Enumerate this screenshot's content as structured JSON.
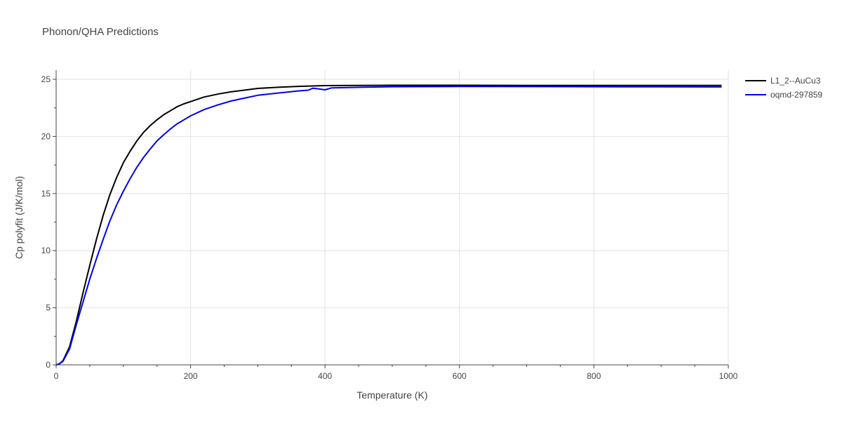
{
  "chart_data": {
    "type": "line",
    "title": "Phonon/QHA Predictions",
    "xlabel": "Temperature (K)",
    "ylabel": "Cp polyfit (J/K/mol)",
    "xlim": [
      0,
      1000
    ],
    "ylim": [
      0,
      25.8
    ],
    "xticks": [
      0,
      200,
      400,
      600,
      800,
      1000
    ],
    "yticks": [
      0,
      5,
      10,
      15,
      20,
      25
    ],
    "grid": true,
    "legend_position": "top-right",
    "series": [
      {
        "name": "L1_2--AuCu3",
        "color": "#000000",
        "x": [
          0,
          5,
          10,
          20,
          30,
          40,
          50,
          60,
          70,
          80,
          90,
          100,
          110,
          120,
          130,
          140,
          150,
          160,
          170,
          180,
          190,
          200,
          220,
          240,
          260,
          280,
          300,
          330,
          360,
          400,
          450,
          500,
          600,
          700,
          800,
          900,
          990
        ],
        "y": [
          0,
          0.1,
          0.35,
          1.6,
          3.8,
          6.3,
          8.7,
          11.0,
          13.1,
          14.9,
          16.4,
          17.7,
          18.7,
          19.6,
          20.35,
          20.95,
          21.45,
          21.9,
          22.25,
          22.6,
          22.85,
          23.05,
          23.45,
          23.7,
          23.9,
          24.05,
          24.2,
          24.3,
          24.38,
          24.45,
          24.47,
          24.48,
          24.48,
          24.47,
          24.47,
          24.46,
          24.46
        ]
      },
      {
        "name": "oqmd-297859",
        "color": "#0000ee",
        "x": [
          0,
          5,
          10,
          20,
          30,
          40,
          50,
          60,
          70,
          80,
          90,
          100,
          110,
          120,
          130,
          140,
          150,
          160,
          170,
          180,
          190,
          200,
          220,
          240,
          260,
          280,
          300,
          330,
          360,
          375,
          382,
          392,
          400,
          410,
          450,
          500,
          600,
          700,
          800,
          900,
          990
        ],
        "y": [
          0,
          0.1,
          0.3,
          1.4,
          3.5,
          5.5,
          7.5,
          9.3,
          11.0,
          12.6,
          14.0,
          15.2,
          16.3,
          17.3,
          18.15,
          18.9,
          19.6,
          20.15,
          20.65,
          21.1,
          21.45,
          21.8,
          22.35,
          22.75,
          23.1,
          23.35,
          23.6,
          23.8,
          23.98,
          24.05,
          24.22,
          24.15,
          24.08,
          24.25,
          24.3,
          24.35,
          24.37,
          24.36,
          24.35,
          24.34,
          24.33
        ]
      }
    ]
  }
}
